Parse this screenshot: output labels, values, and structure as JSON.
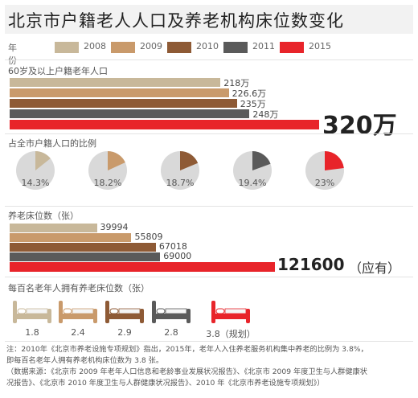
{
  "title": "北京市户籍老人人口及养老机构床位数变化",
  "legend": {
    "label": "年份",
    "items": [
      {
        "year": "2008",
        "color": "#c8b89a"
      },
      {
        "year": "2009",
        "color": "#c99a6b"
      },
      {
        "year": "2010",
        "color": "#8e5a35"
      },
      {
        "year": "2011",
        "color": "#5a5a5a"
      },
      {
        "year": "2015",
        "color": "#e8242a"
      }
    ]
  },
  "chart_data": [
    {
      "type": "bar",
      "title": "60岁及以上户籍老年人口",
      "categories": [
        "2008",
        "2009",
        "2010",
        "2011",
        "2015"
      ],
      "values": [
        218,
        226.6,
        235,
        248,
        320
      ],
      "labels": [
        "218万",
        "226.6万",
        "235万",
        "248万",
        "320万"
      ]
    },
    {
      "type": "pie",
      "title": "占全市户籍人口的比例",
      "categories": [
        "2008",
        "2009",
        "2010",
        "2011",
        "2015"
      ],
      "values": [
        14.3,
        18.2,
        18.7,
        19.4,
        23
      ],
      "labels": [
        "14.3%",
        "18.2%",
        "18.7%",
        "19.4%",
        "23%"
      ]
    },
    {
      "type": "bar",
      "title": "养老床位数（张）",
      "categories": [
        "2008",
        "2009",
        "2010",
        "2011",
        "2015"
      ],
      "values": [
        39994,
        55809,
        67018,
        69000,
        121600
      ],
      "labels": [
        "39994",
        "55809",
        "67018",
        "69000",
        "121600"
      ],
      "note": "（应有）"
    },
    {
      "type": "bar",
      "title": "每百名老年人拥有养老床位数（张）",
      "categories": [
        "2008",
        "2009",
        "2010",
        "2011",
        "2015"
      ],
      "values": [
        1.8,
        2.4,
        2.9,
        2.8,
        3.8
      ],
      "labels": [
        "1.8",
        "2.4",
        "2.9",
        "2.8",
        "3.8（规划）"
      ]
    }
  ],
  "footnote": [
    "注：2010年《北京市养老设施专项规划》指出，2015年，老年人入住养老服务机构集中养老的比例为 3.8%，",
    "即每百名老年人拥有养老机构床位数为 3.8 张。",
    "（数据来源：《北京市 2009 年老年人口信息和老龄事业发展状况报告》、《北京市 2009 年度卫生与人群健康状",
    "况报告》、《北京市 2010 年度卫生与人群健康状况报告》、2010 年《北京市养老设施专项规划》）"
  ]
}
